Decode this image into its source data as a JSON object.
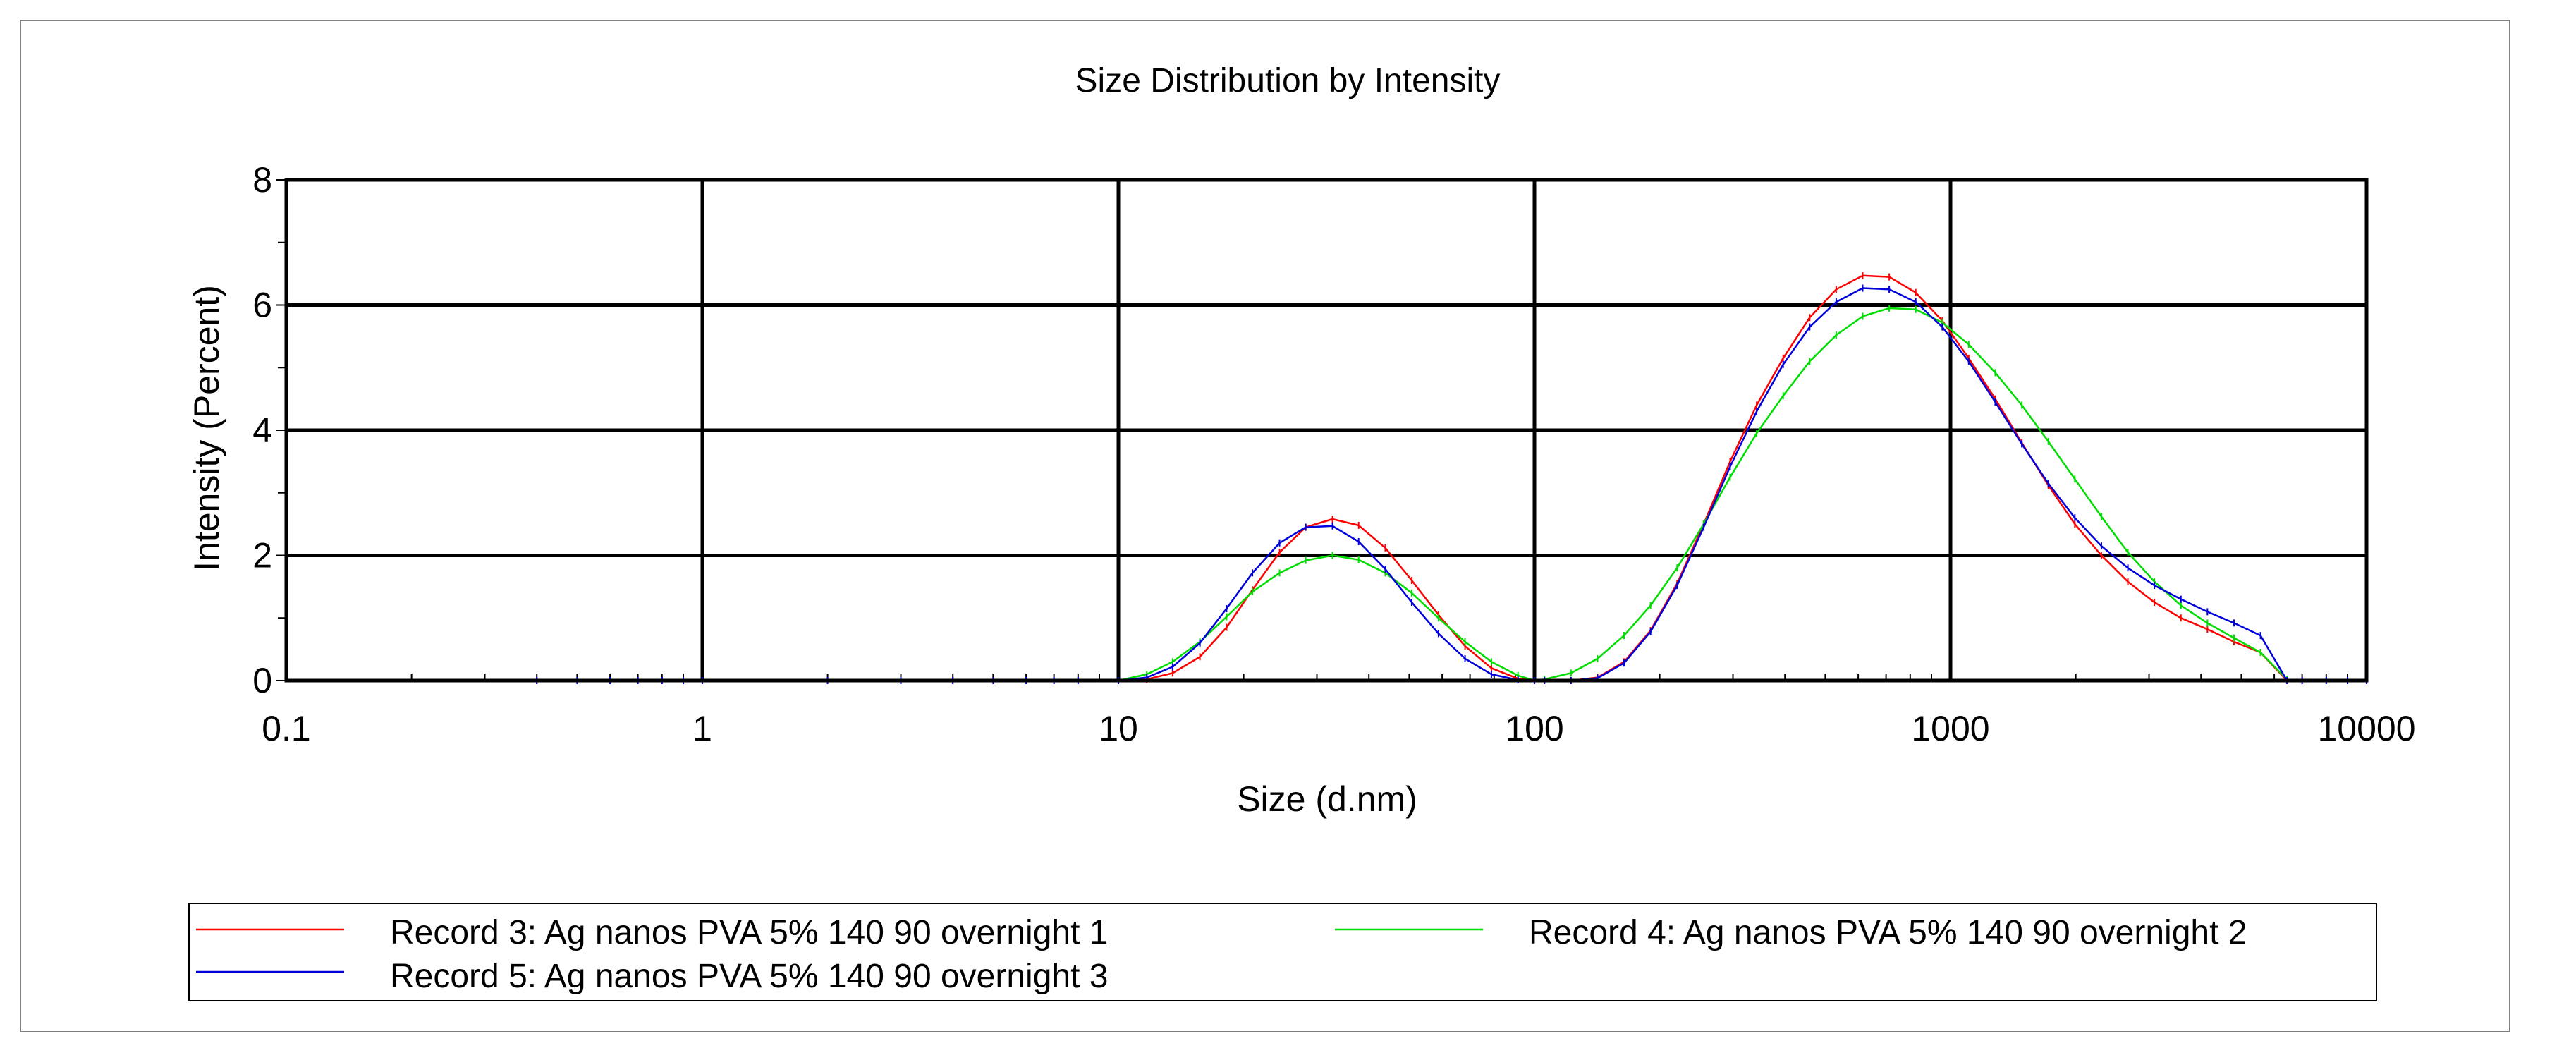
{
  "chart_data": {
    "type": "line",
    "title": "Size Distribution by Intensity",
    "xlabel": "Size (d.nm)",
    "ylabel": "Intensity (Percent)",
    "xscale": "log",
    "xlim": [
      0.1,
      10000
    ],
    "ylim": [
      0,
      8
    ],
    "grid": true,
    "xticks": [
      {
        "value": 0.1,
        "label": "0.1"
      },
      {
        "value": 1,
        "label": "1"
      },
      {
        "value": 10,
        "label": "10"
      },
      {
        "value": 100,
        "label": "100"
      },
      {
        "value": 1000,
        "label": "1000"
      },
      {
        "value": 10000,
        "label": "10000"
      }
    ],
    "yticks": [
      {
        "value": 0,
        "label": "0"
      },
      {
        "value": 2,
        "label": "2"
      },
      {
        "value": 4,
        "label": "4"
      },
      {
        "value": 6,
        "label": "6"
      },
      {
        "value": 8,
        "label": "8"
      }
    ],
    "legend_position": "bottom",
    "series": [
      {
        "name": "Record 3: Ag nanos PVA 5% 140 90 overnight 1",
        "color": "#ff0000",
        "points": [
          [
            0.4,
            0
          ],
          [
            1,
            0
          ],
          [
            4,
            0
          ],
          [
            10,
            0
          ],
          [
            11.7,
            0.02
          ],
          [
            13.5,
            0.12
          ],
          [
            15.7,
            0.38
          ],
          [
            18.2,
            0.85
          ],
          [
            21,
            1.45
          ],
          [
            24.4,
            2.05
          ],
          [
            28.2,
            2.45
          ],
          [
            32.7,
            2.58
          ],
          [
            37.8,
            2.48
          ],
          [
            43.8,
            2.12
          ],
          [
            50.7,
            1.6
          ],
          [
            58.8,
            1.05
          ],
          [
            68.1,
            0.55
          ],
          [
            78.8,
            0.2
          ],
          [
            91.3,
            0.03
          ],
          [
            100,
            0
          ],
          [
            105.7,
            0
          ],
          [
            122.4,
            0
          ],
          [
            141.8,
            0.05
          ],
          [
            164.2,
            0.3
          ],
          [
            190.1,
            0.8
          ],
          [
            220.2,
            1.55
          ],
          [
            255,
            2.5
          ],
          [
            295.3,
            3.5
          ],
          [
            342,
            4.4
          ],
          [
            396.1,
            5.15
          ],
          [
            458.7,
            5.8
          ],
          [
            531.2,
            6.25
          ],
          [
            615.1,
            6.47
          ],
          [
            712.4,
            6.45
          ],
          [
            825,
            6.2
          ],
          [
            955.4,
            5.75
          ],
          [
            1106,
            5.15
          ],
          [
            1281,
            4.5
          ],
          [
            1484,
            3.8
          ],
          [
            1718,
            3.12
          ],
          [
            1990,
            2.5
          ],
          [
            2305,
            2.0
          ],
          [
            2669,
            1.58
          ],
          [
            3091,
            1.25
          ],
          [
            3580,
            1.0
          ],
          [
            4145,
            0.82
          ],
          [
            4801,
            0.62
          ],
          [
            5560,
            0.45
          ],
          [
            6439,
            0.0
          ],
          [
            7000,
            0
          ],
          [
            10000,
            0
          ]
        ]
      },
      {
        "name": "Record 4: Ag nanos PVA 5% 140 90 overnight 2",
        "color": "#00dd00",
        "points": [
          [
            10,
            0
          ],
          [
            11.7,
            0.1
          ],
          [
            13.5,
            0.3
          ],
          [
            15.7,
            0.62
          ],
          [
            18.2,
            1.02
          ],
          [
            21,
            1.42
          ],
          [
            24.4,
            1.72
          ],
          [
            28.2,
            1.92
          ],
          [
            32.7,
            2.0
          ],
          [
            37.8,
            1.93
          ],
          [
            43.8,
            1.72
          ],
          [
            50.7,
            1.4
          ],
          [
            58.8,
            1.0
          ],
          [
            68.1,
            0.62
          ],
          [
            78.8,
            0.3
          ],
          [
            91.3,
            0.08
          ],
          [
            100,
            0
          ],
          [
            105.7,
            0.02
          ],
          [
            122.4,
            0.12
          ],
          [
            141.8,
            0.35
          ],
          [
            164.2,
            0.72
          ],
          [
            190.1,
            1.2
          ],
          [
            220.2,
            1.8
          ],
          [
            255,
            2.5
          ],
          [
            295.3,
            3.25
          ],
          [
            342,
            3.95
          ],
          [
            396.1,
            4.55
          ],
          [
            458.7,
            5.1
          ],
          [
            531.2,
            5.52
          ],
          [
            615.1,
            5.82
          ],
          [
            712.4,
            5.95
          ],
          [
            825,
            5.93
          ],
          [
            955.4,
            5.72
          ],
          [
            1106,
            5.37
          ],
          [
            1281,
            4.92
          ],
          [
            1484,
            4.4
          ],
          [
            1718,
            3.82
          ],
          [
            1990,
            3.22
          ],
          [
            2305,
            2.62
          ],
          [
            2669,
            2.05
          ],
          [
            3091,
            1.58
          ],
          [
            3580,
            1.2
          ],
          [
            4145,
            0.92
          ],
          [
            4801,
            0.68
          ],
          [
            5560,
            0.45
          ],
          [
            6439,
            0.02
          ]
        ]
      },
      {
        "name": "Record 5: Ag nanos PVA 5% 140 90 overnight 3",
        "color": "#0000dd",
        "points": [
          [
            0.4,
            0
          ],
          [
            0.5,
            0
          ],
          [
            0.6,
            0
          ],
          [
            0.7,
            0
          ],
          [
            0.8,
            0
          ],
          [
            0.9,
            0
          ],
          [
            1,
            0
          ],
          [
            2,
            0
          ],
          [
            3,
            0
          ],
          [
            4,
            0
          ],
          [
            5,
            0
          ],
          [
            6,
            0
          ],
          [
            7,
            0
          ],
          [
            8,
            0
          ],
          [
            10,
            0
          ],
          [
            11.7,
            0.05
          ],
          [
            13.5,
            0.22
          ],
          [
            15.7,
            0.6
          ],
          [
            18.2,
            1.15
          ],
          [
            21,
            1.72
          ],
          [
            24.4,
            2.2
          ],
          [
            28.2,
            2.45
          ],
          [
            32.7,
            2.47
          ],
          [
            37.8,
            2.22
          ],
          [
            43.8,
            1.78
          ],
          [
            50.7,
            1.25
          ],
          [
            58.8,
            0.75
          ],
          [
            68.1,
            0.35
          ],
          [
            78.8,
            0.1
          ],
          [
            91.3,
            0.01
          ],
          [
            100,
            0
          ],
          [
            105.7,
            0
          ],
          [
            122.4,
            0
          ],
          [
            141.8,
            0.04
          ],
          [
            164.2,
            0.28
          ],
          [
            190.1,
            0.78
          ],
          [
            220.2,
            1.52
          ],
          [
            255,
            2.45
          ],
          [
            295.3,
            3.42
          ],
          [
            342,
            4.3
          ],
          [
            396.1,
            5.05
          ],
          [
            458.7,
            5.65
          ],
          [
            531.2,
            6.05
          ],
          [
            615.1,
            6.27
          ],
          [
            712.4,
            6.25
          ],
          [
            825,
            6.05
          ],
          [
            955.4,
            5.65
          ],
          [
            1106,
            5.1
          ],
          [
            1281,
            4.45
          ],
          [
            1484,
            3.78
          ],
          [
            1718,
            3.15
          ],
          [
            1990,
            2.6
          ],
          [
            2305,
            2.15
          ],
          [
            2669,
            1.8
          ],
          [
            3091,
            1.52
          ],
          [
            3580,
            1.3
          ],
          [
            4145,
            1.1
          ],
          [
            4801,
            0.92
          ],
          [
            5560,
            0.72
          ],
          [
            6439,
            0.0
          ],
          [
            7000,
            0
          ],
          [
            8000,
            0
          ],
          [
            9000,
            0
          ],
          [
            10000,
            0
          ]
        ]
      }
    ]
  }
}
